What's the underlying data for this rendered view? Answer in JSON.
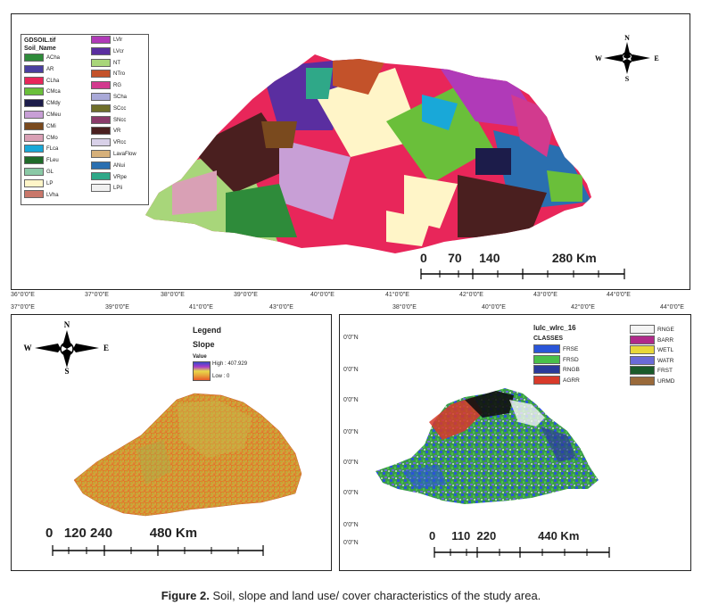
{
  "soil_map": {
    "legend_title": "GDSOIL.tif",
    "legend_field": "Soil_Name",
    "legend_left": [
      {
        "label": "ACha",
        "color": "#2e8b3a"
      },
      {
        "label": "AR",
        "color": "#4a3fa0"
      },
      {
        "label": "CLha",
        "color": "#e8265a"
      },
      {
        "label": "CMca",
        "color": "#6abf3a"
      },
      {
        "label": "CMdy",
        "color": "#1c1c4a"
      },
      {
        "label": "CMeu",
        "color": "#c89fd6"
      },
      {
        "label": "CMi",
        "color": "#7a4a1e"
      },
      {
        "label": "CMo",
        "color": "#d9a0b5"
      },
      {
        "label": "FLca",
        "color": "#19a8d8"
      },
      {
        "label": "FLeu",
        "color": "#1f6b2a"
      },
      {
        "label": "GL",
        "color": "#8ac9a6"
      },
      {
        "label": "LP",
        "color": "#fff5c8"
      },
      {
        "label": "LVha",
        "color": "#c9776a"
      }
    ],
    "legend_right": [
      {
        "label": "LVlr",
        "color": "#b03ab8"
      },
      {
        "label": "LVcr",
        "color": "#5a2ea0"
      },
      {
        "label": "NT",
        "color": "#a8d67a"
      },
      {
        "label": "NTro",
        "color": "#c3522a"
      },
      {
        "label": "RG",
        "color": "#d23a8e"
      },
      {
        "label": "SCha",
        "color": "#a9a9d8"
      },
      {
        "label": "SCcc",
        "color": "#6f6f2a"
      },
      {
        "label": "SNcc",
        "color": "#8a3a6a"
      },
      {
        "label": "VR",
        "color": "#4a1f1f"
      },
      {
        "label": "VRcc",
        "color": "#d8d0e8"
      },
      {
        "label": "LavaFlow",
        "color": "#d6b07a"
      },
      {
        "label": "ANui",
        "color": "#2a6fb0"
      },
      {
        "label": "VRpe",
        "color": "#2fa888"
      },
      {
        "label": "LPli",
        "color": "#f0f0f0"
      }
    ],
    "scale_text": "0      70     140               280 Km",
    "x_ticks": [
      "36°0'0\"E",
      "37°0'0\"E",
      "38°0'0\"E",
      "39°0'0\"E",
      "40°0'0\"E",
      "41°0'0\"E",
      "42°0'0\"E",
      "43°0'0\"E",
      "44°0'0\"E"
    ]
  },
  "slope_map": {
    "legend_title": "Legend",
    "layer": "Slope",
    "field": "Value",
    "high_label": "High : 407.929",
    "low_label": "Low : 0",
    "scale_text": "0   120 240          480 Km",
    "top_ticks": [
      "37°0'0\"E",
      "39°0'0\"E",
      "41°0'0\"E",
      "43°0'0\"E"
    ],
    "colors": {
      "high": "#3a4ac8",
      "mid": "#e8d84a",
      "low": "#e85a2a"
    }
  },
  "lulc_map": {
    "legend_title": "lulc_wlrc_16",
    "legend_field": "CLASSES",
    "legend_left": [
      {
        "label": "FRSE",
        "color": "#2a55d8"
      },
      {
        "label": "FRSD",
        "color": "#49c04a"
      },
      {
        "label": "RNGB",
        "color": "#2a3a9a"
      },
      {
        "label": "AGRR",
        "color": "#d83a2a"
      }
    ],
    "legend_right": [
      {
        "label": "RNGE",
        "color": "#f4f4f4"
      },
      {
        "label": "BARR",
        "color": "#b02a8a"
      },
      {
        "label": "WETL",
        "color": "#e8d83a"
      },
      {
        "label": "WATR",
        "color": "#6a6ad8"
      },
      {
        "label": "FRST",
        "color": "#1a5a2a"
      },
      {
        "label": "URMD",
        "color": "#9a6a3a"
      }
    ],
    "scale_text": "0     110  220             440 Km",
    "top_ticks": [
      "38°0'0\"E",
      "40°0'0\"E",
      "42°0'0\"E",
      "44°0'0\"E"
    ],
    "y_ticks": [
      "0'0\"N",
      "0'0\"N",
      "0'0\"N",
      "0'0\"N",
      "0'0\"N",
      "0'0\"N",
      "0'0\"N",
      "0'0\"N"
    ]
  },
  "north_arrow": {
    "n": "N",
    "s": "S",
    "e": "E",
    "w": "W"
  },
  "caption_bold": "Figure 2.",
  "caption_text": " Soil, slope and land use/ cover characteristics of the study area."
}
